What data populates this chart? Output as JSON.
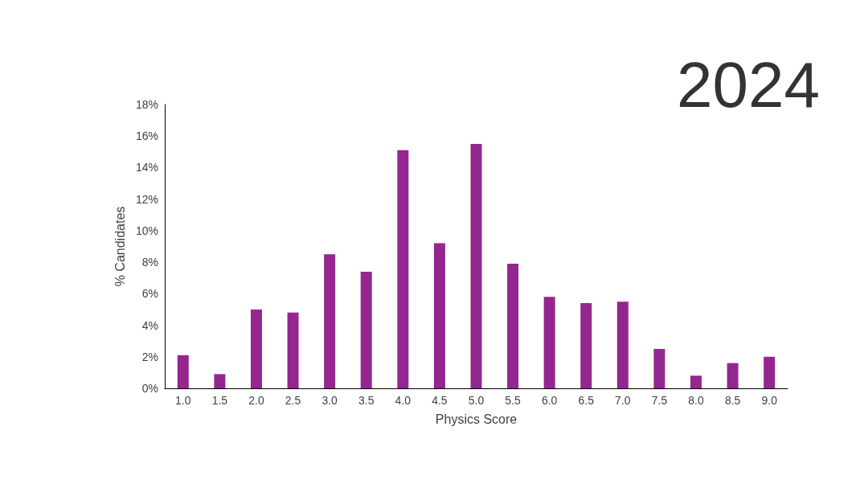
{
  "chart_data": {
    "type": "bar",
    "title": "2024",
    "xlabel": "Physics Score",
    "ylabel": "% Candidates",
    "categories": [
      "1.0",
      "1.5",
      "2.0",
      "2.5",
      "3.0",
      "3.5",
      "4.0",
      "4.5",
      "5.0",
      "5.5",
      "6.0",
      "6.5",
      "7.0",
      "7.5",
      "8.0",
      "8.5",
      "9.0"
    ],
    "values": [
      2.1,
      0.9,
      5.0,
      4.8,
      8.5,
      7.4,
      15.1,
      9.2,
      15.5,
      7.9,
      5.8,
      5.4,
      5.5,
      2.5,
      0.8,
      1.6,
      2.0
    ],
    "color": "#93278f",
    "ylim": [
      0,
      18
    ],
    "yticks": [
      {
        "value": 0,
        "label": "0%"
      },
      {
        "value": 2,
        "label": "2%"
      },
      {
        "value": 4,
        "label": "4%"
      },
      {
        "value": 6,
        "label": "6%"
      },
      {
        "value": 8,
        "label": "8%"
      },
      {
        "value": 10,
        "label": "10%"
      },
      {
        "value": 12,
        "label": "12%"
      },
      {
        "value": 14,
        "label": "14%"
      },
      {
        "value": 16,
        "label": "16%"
      },
      {
        "value": 18,
        "label": "18%"
      }
    ],
    "grid": false
  }
}
